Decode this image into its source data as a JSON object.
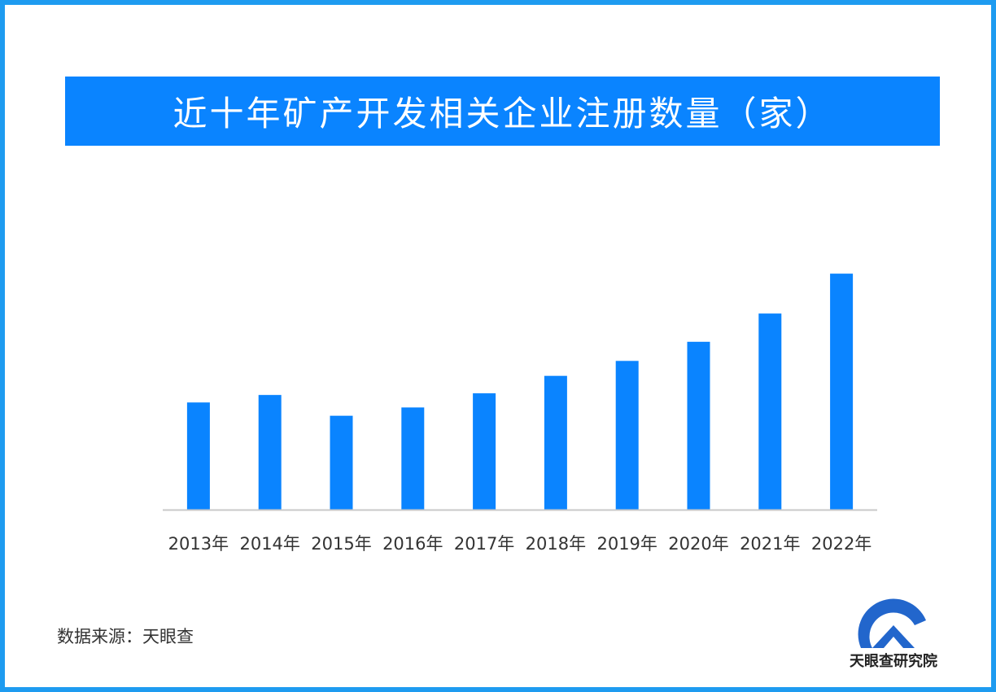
{
  "title": "近十年矿产开发相关企业注册数量（家）",
  "source": "数据来源：天眼查",
  "logo_text": "天眼查研究院",
  "colors": {
    "bar": "#0a84ff",
    "banner": "#0a84ff",
    "frame": "#1e9bf0",
    "axis": "#c8c8c8"
  },
  "chart_data": {
    "type": "bar",
    "title": "近十年矿产开发相关企业注册数量（家）",
    "categories": [
      "2013年",
      "2014年",
      "2015年",
      "2016年",
      "2017年",
      "2018年",
      "2019年",
      "2020年",
      "2021年",
      "2022年"
    ],
    "values": [
      129,
      138,
      113,
      123,
      140,
      161,
      179,
      202,
      236,
      284
    ],
    "xlabel": "",
    "ylabel": "",
    "ylim": [
      0,
      290
    ],
    "grid": false,
    "y_axis_visible": false,
    "data_labels": false
  }
}
